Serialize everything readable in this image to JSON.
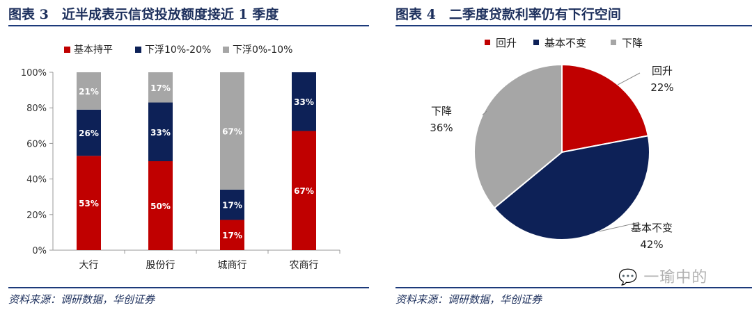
{
  "left": {
    "title": "图表 3　近半成表示信贷投放额度接近 1 季度",
    "source": "资料来源：调研数据，华创证券"
  },
  "right": {
    "title": "图表 4　二季度贷款利率仍有下行空间",
    "source": "资料来源：调研数据，华创证券"
  },
  "watermark": "一瑜中的",
  "chart_data": [
    {
      "type": "bar",
      "stacked": true,
      "categories": [
        "大行",
        "股份行",
        "城商行",
        "农商行"
      ],
      "series": [
        {
          "name": "基本持平",
          "color": "#c00000",
          "values": [
            53,
            50,
            17,
            67
          ],
          "labels": [
            "53%",
            "50%",
            "17%",
            "67%"
          ]
        },
        {
          "name": "下浮10%-20%",
          "color": "#0d2157",
          "values": [
            26,
            33,
            17,
            33
          ],
          "labels": [
            "26%",
            "33%",
            "17%",
            "33%"
          ]
        },
        {
          "name": "下浮0%-10%",
          "color": "#a6a6a6",
          "values": [
            21,
            17,
            67,
            0
          ],
          "labels": [
            "21%",
            "17%",
            "67%",
            ""
          ]
        }
      ],
      "yticks": [
        "0%",
        "20%",
        "40%",
        "60%",
        "80%",
        "100%"
      ],
      "ylim": [
        0,
        100
      ],
      "grid": false,
      "legend": "top"
    },
    {
      "type": "pie",
      "slices": [
        {
          "name": "回升",
          "value": 22,
          "label": "22%",
          "color": "#c00000"
        },
        {
          "name": "基本不变",
          "value": 42,
          "label": "42%",
          "color": "#0d2157"
        },
        {
          "name": "下降",
          "value": 36,
          "label": "36%",
          "color": "#a6a6a6"
        }
      ],
      "legend": "top"
    }
  ]
}
